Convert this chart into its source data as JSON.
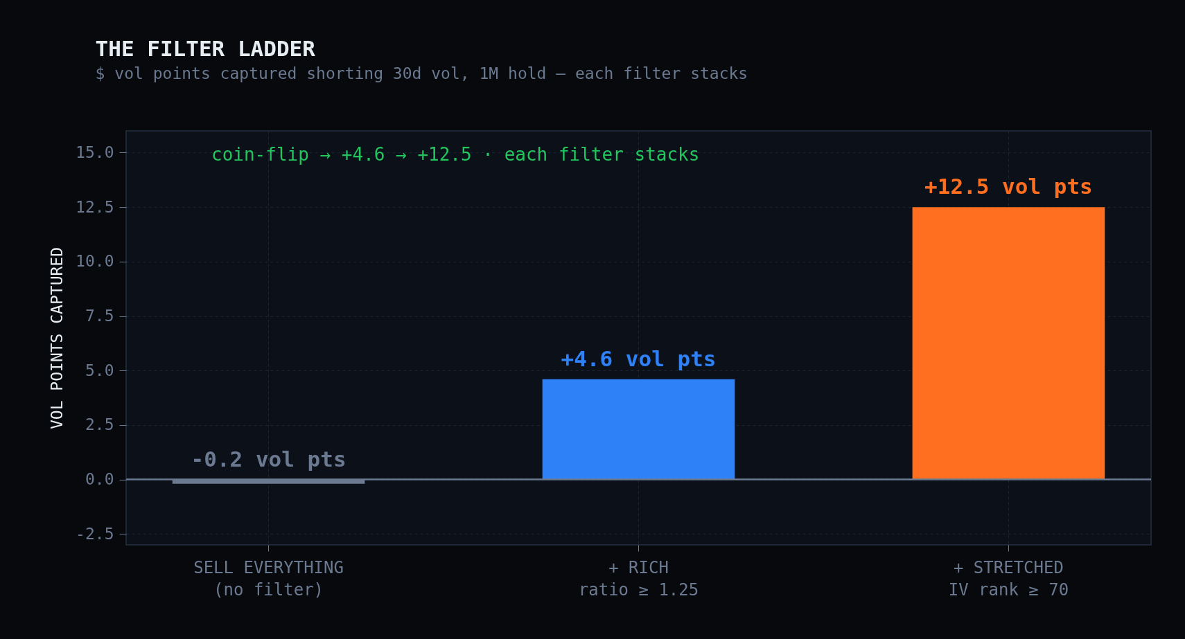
{
  "chart_data": {
    "type": "bar",
    "title": "THE FILTER LADDER",
    "subtitle": "$ vol points captured shorting 30d vol, 1M hold — each filter stacks",
    "ylabel": "VOL POINTS CAPTURED",
    "categories": [
      "SELL EVERYTHING\n(no filter)",
      "+ RICH\nratio ≥ 1.25",
      "+ STRETCHED\nIV rank ≥ 70"
    ],
    "values": [
      -0.2,
      4.6,
      12.5
    ],
    "colors": [
      "#6b7a90",
      "#2f81f7",
      "#ff6f1f"
    ],
    "value_labels": [
      "-0.2 vol pts",
      "+4.6 vol pts",
      "+12.5 vol pts"
    ],
    "ylim": [
      -3.0,
      16.0
    ],
    "yticks": [
      -2.5,
      {
        "value": 0,
        "label": "0.0"
      },
      2.5,
      {
        "value": 5,
        "label": "5.0"
      },
      7.5,
      {
        "value": 10,
        "label": "10.0"
      },
      12.5,
      {
        "value": 15,
        "label": "15.0"
      }
    ],
    "grid": true,
    "ref_lines": [
      {
        "axis": "y",
        "value": 0,
        "color": "#6b7a90",
        "line_style": "solid"
      }
    ],
    "annotations": [
      "coin-flip → +4.6 → +12.5 · each filter stacks"
    ]
  }
}
